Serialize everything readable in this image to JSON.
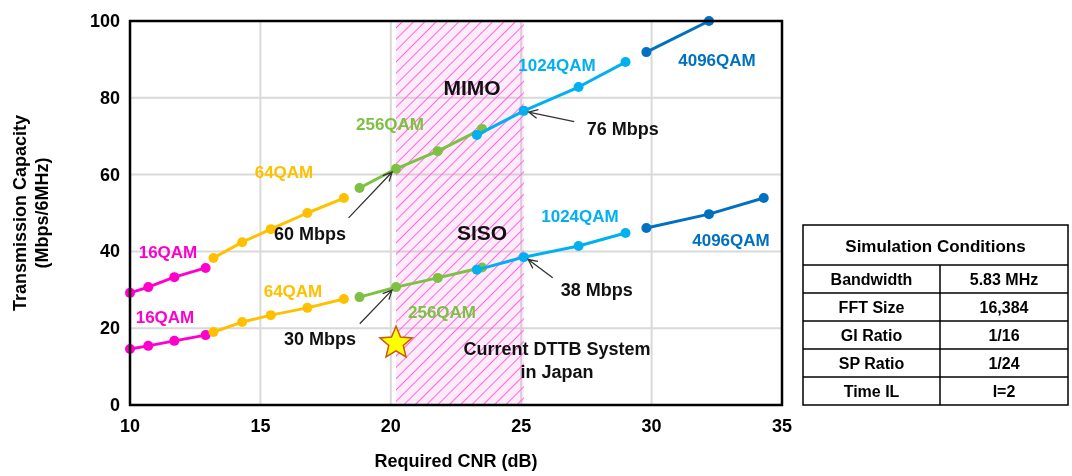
{
  "chart_data": [
    {
      "type": "line",
      "xlabel": "Required CNR (dB)",
      "ylabel": "Transmission Capacity\n(Mbps/6MHz)",
      "xlim": [
        10,
        35
      ],
      "ylim": [
        0,
        100
      ],
      "xticks": [
        10,
        15,
        20,
        25,
        30,
        35
      ],
      "yticks": [
        0,
        20,
        40,
        60,
        80,
        100
      ],
      "grid": true,
      "marker": "circle",
      "line_style": "solid",
      "series": [
        {
          "name": "16QAM",
          "color": "#ff00cc",
          "x": [
            10,
            10.7,
            11.7,
            12.9
          ],
          "values": [
            29.2,
            30.7,
            33.3,
            35.7
          ]
        },
        {
          "name": "64QAM",
          "color": "#ffc000",
          "x": [
            13.2,
            14.3,
            15.4,
            16.8,
            18.2
          ],
          "values": [
            38.3,
            42.4,
            45.8,
            50,
            53.9
          ]
        },
        {
          "name": "256QAM",
          "color": "#7cc142",
          "x": [
            18.8,
            20.2,
            21.8,
            23.5
          ],
          "values": [
            56.5,
            61.5,
            66.1,
            71.9
          ]
        },
        {
          "name": "1024QAM",
          "color": "#00b0f0",
          "x": [
            23.3,
            25.1,
            27.2,
            29
          ],
          "values": [
            70.3,
            76.6,
            82.8,
            89.3
          ]
        },
        {
          "name": "4096QAM",
          "color": "#0070c0",
          "x": [
            29.8,
            32.2
          ],
          "values": [
            91.9,
            100
          ]
        },
        {
          "name": "16QAM",
          "color": "#ff00cc",
          "x": [
            10,
            10.7,
            11.7,
            12.9
          ],
          "values": [
            14.6,
            15.4,
            16.7,
            18.2
          ]
        },
        {
          "name": "64QAM",
          "color": "#ffc000",
          "x": [
            13.2,
            14.3,
            15.4,
            16.8,
            18.2
          ],
          "values": [
            19,
            21.6,
            23.4,
            25.3,
            27.6
          ]
        },
        {
          "name": "256QAM",
          "color": "#7cc142",
          "x": [
            18.8,
            20.2,
            21.8,
            23.5
          ],
          "values": [
            28.1,
            30.7,
            33.1,
            35.8
          ]
        },
        {
          "name": "1024QAM",
          "color": "#00b0f0",
          "x": [
            23.3,
            25.1,
            27.2,
            29
          ],
          "values": [
            35.2,
            38.5,
            41.4,
            44.8
          ]
        },
        {
          "name": "4096QAM",
          "color": "#0070c0",
          "x": [
            29.8,
            32.2,
            34.3
          ],
          "values": [
            46.1,
            49.7,
            53.9
          ]
        },
        {
          "type": "scatter",
          "marker": "star",
          "color": "#ffff00",
          "x": [
            20.2
          ],
          "values": [
            16.1
          ]
        }
      ],
      "bands": [
        {
          "axis": "x",
          "from": 20.2,
          "to": 25.1,
          "color": "#ff66dd"
        }
      ],
      "annotations": [
        {
          "text": "MIMO",
          "x": 23.5,
          "y": 71.9
        },
        {
          "text": "SISO",
          "x": 23.5,
          "y": 35.2
        },
        {
          "text": "60 Mbps",
          "x": 20.2,
          "y": 61.5
        },
        {
          "text": "76 Mbps",
          "x": 25.1,
          "y": 76.6
        },
        {
          "text": "30 Mbps",
          "x": 20.2,
          "y": 30.7
        },
        {
          "text": "38 Mbps",
          "x": 25.1,
          "y": 38.5
        },
        "Current DTTB System\nin Japan"
      ]
    },
    {
      "type": "other",
      "title": "Simulation Conditions",
      "categories": [
        "Bandwidth",
        "FFT Size",
        "GI Ratio",
        "SP Ratio",
        "Time IL"
      ],
      "value_labels": [
        "5.83 MHz",
        "16,384",
        "1/16",
        "1/24",
        "I=2"
      ]
    }
  ]
}
